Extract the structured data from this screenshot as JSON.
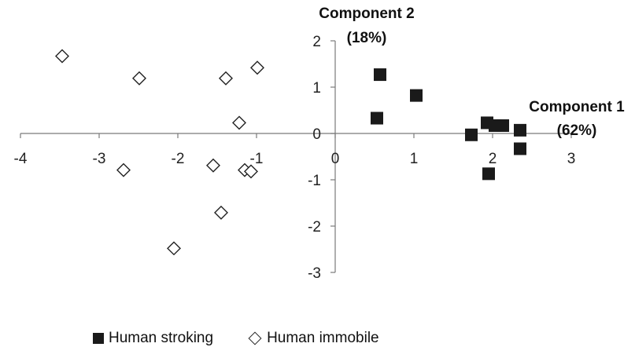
{
  "chart_data": {
    "type": "scatter",
    "x_title_line1": "Component 1",
    "x_title_line2": "(62%)",
    "y_title_line1": "Component 2",
    "y_title_line2": "(18%)",
    "xlim": [
      -4,
      3
    ],
    "ylim": [
      -3,
      2
    ],
    "x_ticks": [
      "-4",
      "-3",
      "-2",
      "-1",
      "0",
      "1",
      "2",
      "3"
    ],
    "y_ticks": [
      "2",
      "1",
      "0",
      "-1",
      "-2",
      "-3"
    ],
    "grid": false,
    "legend_position": "bottom",
    "series": [
      {
        "name": "Human stroking",
        "marker": "filled-square",
        "color": "#1a1a1a",
        "points": [
          {
            "x": 0.57,
            "y": 1.27
          },
          {
            "x": 1.03,
            "y": 0.82
          },
          {
            "x": 0.53,
            "y": 0.33
          },
          {
            "x": 1.73,
            "y": -0.03
          },
          {
            "x": 1.93,
            "y": 0.23
          },
          {
            "x": 2.03,
            "y": 0.17
          },
          {
            "x": 2.13,
            "y": 0.17
          },
          {
            "x": 2.35,
            "y": 0.07
          },
          {
            "x": 2.35,
            "y": -0.33
          },
          {
            "x": 1.95,
            "y": -0.87
          }
        ]
      },
      {
        "name": "Human immobile",
        "marker": "open-diamond",
        "color": "#222222",
        "points": [
          {
            "x": -3.47,
            "y": 1.67
          },
          {
            "x": -2.49,
            "y": 1.19
          },
          {
            "x": -1.39,
            "y": 1.19
          },
          {
            "x": -0.99,
            "y": 1.42
          },
          {
            "x": -1.22,
            "y": 0.23
          },
          {
            "x": -2.69,
            "y": -0.79
          },
          {
            "x": -1.55,
            "y": -0.69
          },
          {
            "x": -1.15,
            "y": -0.79
          },
          {
            "x": -1.07,
            "y": -0.82
          },
          {
            "x": -1.45,
            "y": -1.71
          },
          {
            "x": -2.05,
            "y": -2.48
          }
        ]
      }
    ]
  }
}
